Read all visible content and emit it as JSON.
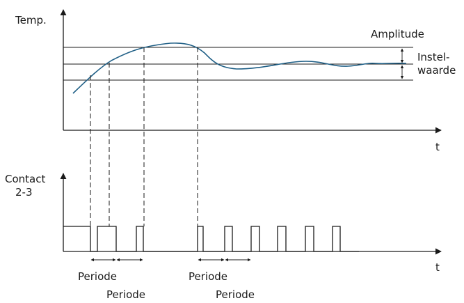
{
  "labels": {
    "temp_axis": "Temp.",
    "time_axis_top": "t",
    "time_axis_bottom": "t",
    "contact_line1": "Contact",
    "contact_line2": "2-3",
    "amplitude": "Amplitude",
    "setpoint_line1": "Instel-",
    "setpoint_line2": "waarde",
    "period_1": "Periode",
    "period_2": "Periode",
    "period_3": "Periode",
    "period_4": "Periode"
  },
  "colors": {
    "curve": "#1f5f86",
    "ink": "#1a1a1a"
  }
}
